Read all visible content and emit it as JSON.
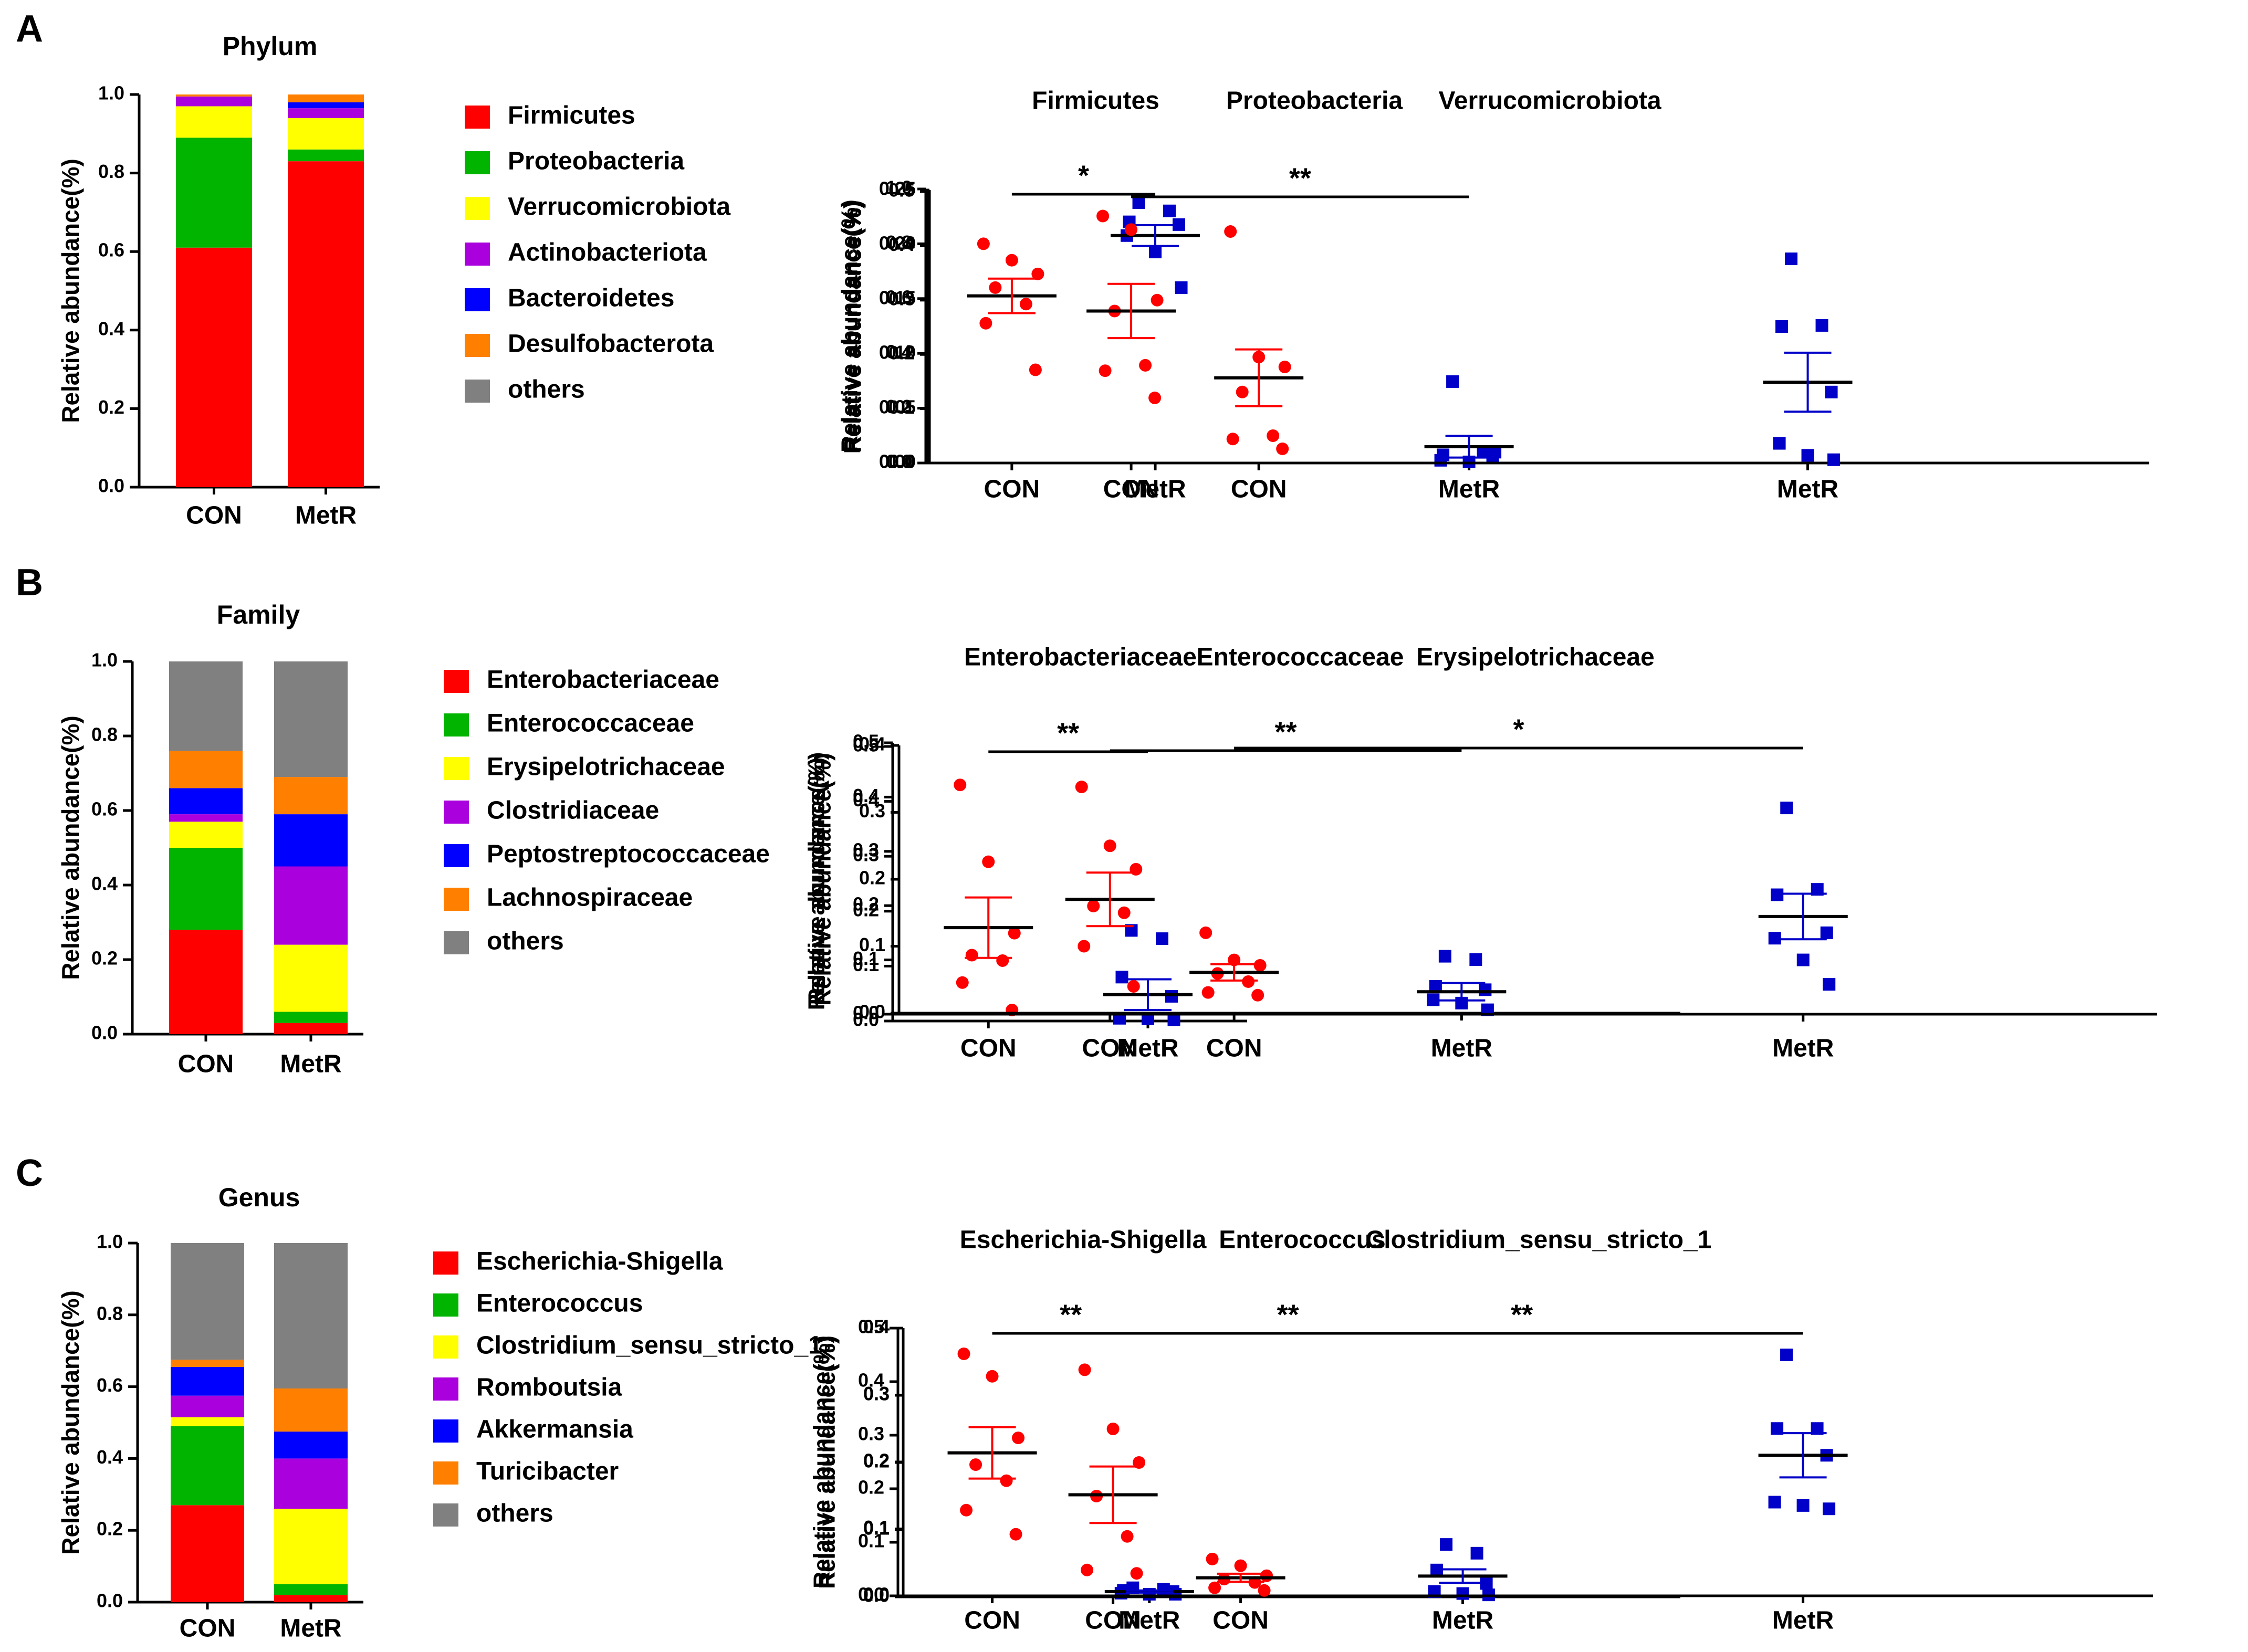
{
  "figure": {
    "colors": {
      "con": "#ff0000",
      "metr": "#0000c8",
      "axis": "#000000",
      "stack": [
        "#ff0000",
        "#00b400",
        "#ffff00",
        "#aa00dd",
        "#0000ff",
        "#ff8000",
        "#808080"
      ]
    },
    "panels": [
      {
        "letter": "A",
        "stacked": {
          "title": "Phylum",
          "ylabel": "Relative abundance(%)",
          "yticks": [
            "0.0",
            "0.2",
            "0.4",
            "0.6",
            "0.8",
            "1.0"
          ],
          "categories": [
            "CON",
            "MetR"
          ],
          "legend": [
            "Firmicutes",
            "Proteobacteria",
            "Verrucomicrobiota",
            "Actinobacteriota",
            "Bacteroidetes",
            "Desulfobacterota",
            "others"
          ],
          "values": [
            [
              0.61,
              0.28,
              0.08,
              0.025,
              0.0,
              0.005,
              0.0
            ],
            [
              0.83,
              0.03,
              0.08,
              0.025,
              0.015,
              0.02,
              0.0
            ]
          ]
        },
        "scatters": [
          {
            "title": "Firmicutes",
            "ymax": 1.0,
            "yticks": [
              "0.0",
              "0.2",
              "0.4",
              "0.6",
              "0.8",
              "1.0"
            ],
            "sig": "*",
            "con": [
              0.8,
              0.74,
              0.69,
              0.64,
              0.58,
              0.51,
              0.34
            ],
            "metr": [
              0.95,
              0.92,
              0.88,
              0.87,
              0.83,
              0.77,
              0.64
            ],
            "con_mean": 0.61,
            "con_sem": 0.063,
            "metr_mean": 0.83,
            "metr_sem": 0.038
          },
          {
            "title": "Proteobacteria",
            "ymax": 0.5,
            "yticks": [
              "0.0",
              "0.1",
              "0.2",
              "0.3",
              "0.4",
              "0.5"
            ],
            "sig": "**",
            "con": [
              0.455,
              0.43,
              0.3,
              0.28,
              0.18,
              0.17,
              0.12
            ],
            "metr": [
              0.15,
              0.02,
              0.015,
              0.01,
              0.005,
              0.002,
              0.02
            ],
            "con_mean": 0.28,
            "con_sem": 0.05,
            "metr_mean": 0.03,
            "metr_sem": 0.02
          },
          {
            "title": "Verrucomicrobiota",
            "ymax": 0.25,
            "yticks": [
              "0.00",
              "0.05",
              "0.10",
              "0.15",
              "0.20",
              "0.25"
            ],
            "sig": "",
            "con": [
              0.212,
              0.097,
              0.088,
              0.065,
              0.025,
              0.022,
              0.013
            ],
            "metr": [
              0.187,
              0.126,
              0.125,
              0.065,
              0.018,
              0.007,
              0.003
            ],
            "con_mean": 0.078,
            "con_sem": 0.026,
            "metr_mean": 0.074,
            "metr_sem": 0.027
          }
        ]
      },
      {
        "letter": "B",
        "stacked": {
          "title": "Family",
          "ylabel": "Relative abundance(%)",
          "yticks": [
            "0.0",
            "0.2",
            "0.4",
            "0.6",
            "0.8",
            "1.0"
          ],
          "categories": [
            "CON",
            "MetR"
          ],
          "legend": [
            "Enterobacteriaceae",
            "Enterococcaceae",
            "Erysipelotrichaceae",
            "Clostridiaceae",
            "Peptostreptococcaceae",
            "Lachnospiraceae",
            "others"
          ],
          "values": [
            [
              0.28,
              0.22,
              0.07,
              0.02,
              0.07,
              0.1,
              0.24
            ],
            [
              0.03,
              0.03,
              0.18,
              0.21,
              0.14,
              0.1,
              0.31
            ]
          ]
        },
        "scatters": [
          {
            "title": "Enterobacteriaceae",
            "ymax": 0.5,
            "yticks": [
              "0.0",
              "0.1",
              "0.2",
              "0.3",
              "0.4",
              "0.5"
            ],
            "sig": "**",
            "con": [
              0.43,
              0.29,
              0.16,
              0.12,
              0.11,
              0.07,
              0.02
            ],
            "metr": [
              0.165,
              0.15,
              0.08,
              0.045,
              0.005,
              0.004,
              0.002
            ],
            "con_mean": 0.17,
            "con_sem": 0.055,
            "metr_mean": 0.048,
            "metr_sem": 0.028
          },
          {
            "title": "Enterococcaceae",
            "ymax": 0.4,
            "yticks": [
              "0.0",
              "0.1",
              "0.2",
              "0.3",
              "0.4"
            ],
            "sig": "**",
            "con": [
              0.338,
              0.25,
              0.215,
              0.16,
              0.15,
              0.1,
              0.04
            ],
            "metr": [
              0.085,
              0.08,
              0.04,
              0.035,
              0.02,
              0.015,
              0.005
            ],
            "con_mean": 0.17,
            "con_sem": 0.04,
            "metr_mean": 0.032,
            "metr_sem": 0.013
          },
          {
            "title": "Erysipelotrichaceae",
            "ymax": 0.5,
            "yticks": [
              "0.0",
              "0.1",
              "0.2",
              "0.3",
              "0.4",
              "0.5"
            ],
            "sig": "*",
            "con": [
              0.15,
              0.1,
              0.09,
              0.075,
              0.06,
              0.04,
              0.035
            ],
            "metr": [
              0.38,
              0.23,
              0.22,
              0.15,
              0.14,
              0.1,
              0.055
            ],
            "con_mean": 0.077,
            "con_sem": 0.015,
            "metr_mean": 0.18,
            "metr_sem": 0.042
          }
        ]
      },
      {
        "letter": "C",
        "stacked": {
          "title": "Genus",
          "ylabel": "Relative abundance(%)",
          "yticks": [
            "0.0",
            "0.2",
            "0.4",
            "0.6",
            "0.8",
            "1.0"
          ],
          "categories": [
            "CON",
            "MetR"
          ],
          "legend": [
            "Escherichia-Shigella",
            "Enterococcus",
            "Clostridium_sensu_stricto_1",
            "Romboutsia",
            "Akkermansia",
            "Turicibacter",
            "others"
          ],
          "values": [
            [
              0.27,
              0.22,
              0.025,
              0.06,
              0.08,
              0.02,
              0.325
            ],
            [
              0.02,
              0.03,
              0.21,
              0.14,
              0.075,
              0.12,
              0.405
            ]
          ]
        },
        "scatters": [
          {
            "title": "Escherichia-Shigella",
            "ymax": 0.5,
            "yticks": [
              "0.0",
              "0.1",
              "0.2",
              "0.3",
              "0.4",
              "0.5"
            ],
            "sig": "**",
            "con": [
              0.452,
              0.41,
              0.295,
              0.245,
              0.215,
              0.16,
              0.115
            ],
            "metr": [
              0.015,
              0.012,
              0.01,
              0.008,
              0.005,
              0.003,
              0.003
            ],
            "con_mean": 0.267,
            "con_sem": 0.048,
            "metr_mean": 0.008,
            "metr_sem": 0.002
          },
          {
            "title": "Enterococcus",
            "ymax": 0.4,
            "yticks": [
              "0.0",
              "0.1",
              "0.2",
              "0.3",
              "0.4"
            ],
            "sig": "**",
            "con": [
              0.338,
              0.25,
              0.2,
              0.15,
              0.09,
              0.04,
              0.035
            ],
            "metr": [
              0.078,
              0.065,
              0.04,
              0.02,
              0.008,
              0.005,
              0.003
            ],
            "con_mean": 0.152,
            "con_sem": 0.042,
            "metr_mean": 0.031,
            "metr_sem": 0.01
          },
          {
            "title": "Clostridium_sensu_stricto_1",
            "ymax": 0.4,
            "yticks": [
              "0.0",
              "0.1",
              "0.2",
              "0.3",
              "0.4"
            ],
            "sig": "**",
            "con": [
              0.055,
              0.045,
              0.03,
              0.025,
              0.02,
              0.012,
              0.008
            ],
            "metr": [
              0.36,
              0.25,
              0.25,
              0.21,
              0.14,
              0.135,
              0.13
            ],
            "con_mean": 0.027,
            "con_sem": 0.006,
            "metr_mean": 0.21,
            "metr_sem": 0.033
          }
        ]
      }
    ]
  }
}
